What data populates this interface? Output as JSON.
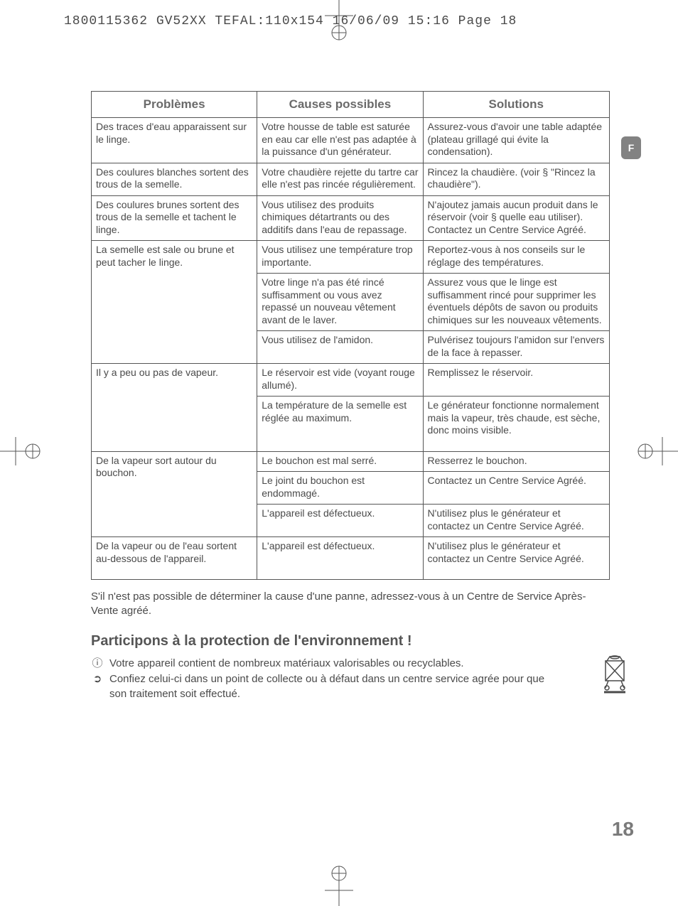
{
  "header": "1800115362 GV52XX TEFAL:110x154  16/06/09  15:16  Page 18",
  "language_tab": "F",
  "table": {
    "col_widths": [
      "32%",
      "32%",
      "36%"
    ],
    "headers": [
      "Problèmes",
      "Causes possibles",
      "Solutions"
    ],
    "groups": [
      {
        "problem": "Des traces d'eau apparaissent sur le linge.",
        "rows": [
          {
            "cause": "Votre housse de table est saturée en eau car elle n'est pas adaptée à la puissance d'un générateur.",
            "solution": "Assurez-vous d'avoir une table adaptée (plateau grillagé qui évite la condensation)."
          }
        ]
      },
      {
        "problem": "Des coulures blanches sortent des trous de la semelle.",
        "rows": [
          {
            "cause": "Votre chaudière rejette du tartre car elle n'est pas rincée régulièrement.",
            "solution": "Rincez la chaudière. (voir § \"Rincez la chaudière\")."
          }
        ]
      },
      {
        "problem": "Des coulures brunes sortent des trous de la semelle et tachent le linge.",
        "rows": [
          {
            "cause": "Vous utilisez des produits chimiques détartrants ou des additifs dans l'eau de repassage.",
            "solution": "N'ajoutez jamais aucun produit dans le réservoir (voir § quelle eau utiliser).\nContactez un Centre Service Agréé."
          }
        ]
      },
      {
        "problem": "La semelle est sale ou brune et peut tacher le linge.",
        "rows": [
          {
            "cause": "Vous utilisez une température trop importante.",
            "solution": "Reportez-vous à nos conseils sur le réglage des températures."
          },
          {
            "cause": "Votre linge n'a pas été rincé suffisamment ou vous avez repassé un nouveau vêtement avant de le laver.",
            "solution": "Assurez vous que le linge est suffisamment rincé pour supprimer les éventuels dépôts de savon ou produits chimiques sur les nouveaux vêtements."
          },
          {
            "cause": "Vous utilisez de l'amidon.",
            "solution": "Pulvérisez toujours l'amidon sur l'envers de la face à repasser."
          }
        ]
      },
      {
        "problem": "Il y a peu ou pas de vapeur.",
        "rows": [
          {
            "cause": "Le réservoir est vide (voyant rouge allumé).",
            "solution": "Remplissez le réservoir."
          },
          {
            "cause": "La température de la semelle est réglée au maximum.",
            "solution": "Le générateur fonctionne normalement mais la vapeur, très chaude, est sèche, donc moins visible."
          }
        ],
        "extra_bottom_pad": true
      },
      {
        "problem": "De la vapeur sort autour du bouchon.",
        "rows": [
          {
            "cause": "Le bouchon est mal serré.",
            "solution": "Resserrez le bouchon."
          },
          {
            "cause": "Le joint du bouchon est endommagé.",
            "solution": "Contactez un Centre Service Agréé."
          },
          {
            "cause": "L'appareil est défectueux.",
            "solution": "N'utilisez plus le générateur et contactez un Centre Service Agréé."
          }
        ]
      },
      {
        "problem": "De la vapeur ou de l'eau sortent au-dessous de l'appareil.",
        "rows": [
          {
            "cause": "L'appareil est défectueux.",
            "solution": "N'utilisez plus le générateur et contactez un Centre Service Agréé."
          }
        ],
        "extra_bottom_pad": true
      }
    ]
  },
  "note": "S'il n'est pas possible de déterminer la cause d'une panne, adressez-vous à un Centre de Service Après-Vente agréé.",
  "env_heading": "Participons à la protection de l'environnement !",
  "env_items": [
    {
      "icon": "ⓘ",
      "text": "Votre appareil contient de nombreux matériaux valorisables ou recyclables."
    },
    {
      "icon": "➲",
      "text": "Confiez celui-ci dans un point de collecte ou à défaut dans un centre service agrée pour que son traitement soit effectué."
    }
  ],
  "page_number": "18"
}
